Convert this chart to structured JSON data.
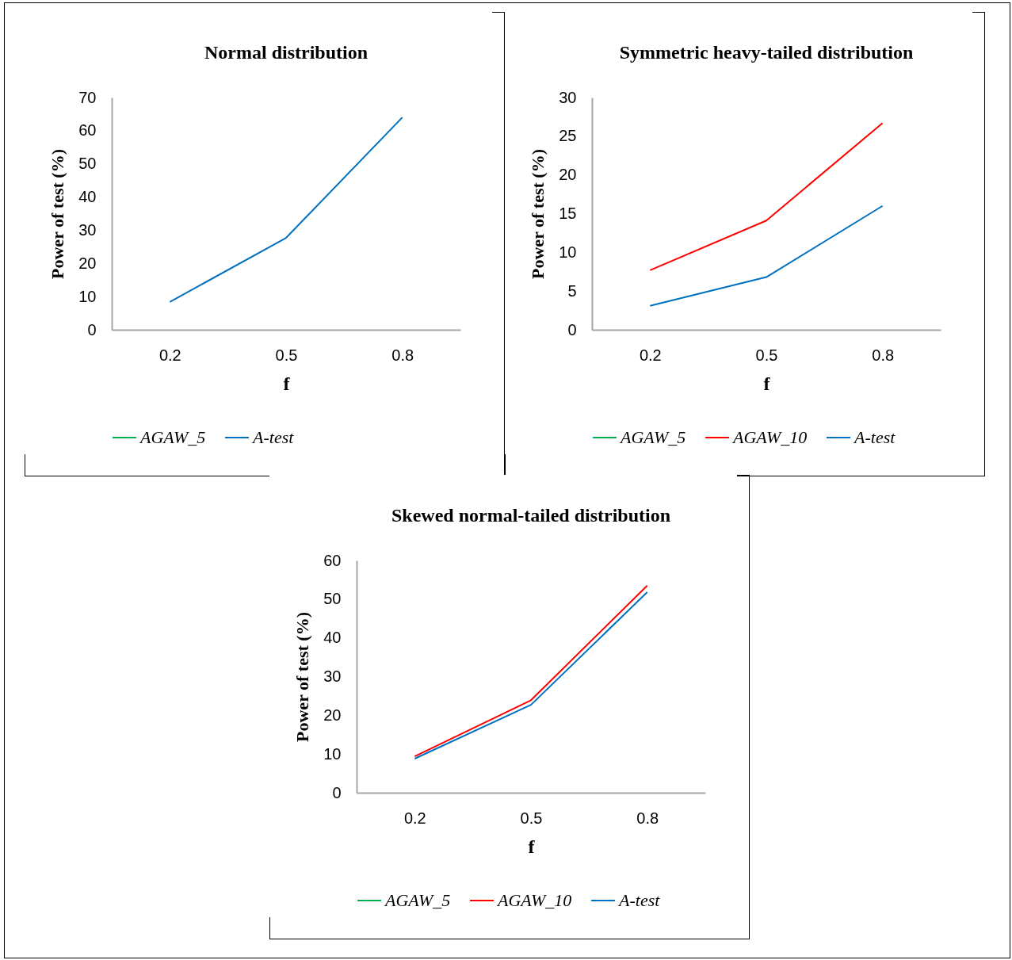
{
  "chart_data": [
    {
      "type": "line",
      "title": "Normal distribution",
      "xlabel": "f",
      "ylabel": "Power of test (%)",
      "categories": [
        "0.2",
        "0.5",
        "0.8"
      ],
      "ylim": [
        0,
        70
      ],
      "yticks": [
        0,
        10,
        20,
        30,
        40,
        50,
        60,
        70
      ],
      "grid": false,
      "legend": "bottom",
      "series": [
        {
          "name": "AGAW_5",
          "color": "#00b050",
          "values": [
            null,
            null,
            null
          ]
        },
        {
          "name": "A-test",
          "color": "#0070c0",
          "values": [
            8.4,
            27.7,
            64
          ]
        }
      ]
    },
    {
      "type": "line",
      "title": "Symmetric heavy-tailed distribution",
      "xlabel": "f",
      "ylabel": "Power of test (%)",
      "categories": [
        "0.2",
        "0.5",
        "0.8"
      ],
      "ylim": [
        0,
        30
      ],
      "yticks": [
        0,
        5,
        10,
        15,
        20,
        25,
        30
      ],
      "grid": false,
      "legend": "bottom",
      "series": [
        {
          "name": "AGAW_5",
          "color": "#00b050",
          "values": [
            null,
            null,
            null
          ]
        },
        {
          "name": "AGAW_10",
          "color": "#ff0000",
          "values": [
            7.7,
            14.1,
            26.7
          ]
        },
        {
          "name": "A-test",
          "color": "#0070c0",
          "values": [
            3.1,
            6.8,
            16.0
          ]
        }
      ]
    },
    {
      "type": "line",
      "title": "Skewed normal-tailed distribution",
      "xlabel": "f",
      "ylabel": "Power of test (%)",
      "categories": [
        "0.2",
        "0.5",
        "0.8"
      ],
      "ylim": [
        0,
        60
      ],
      "yticks": [
        0,
        10,
        20,
        30,
        40,
        50,
        60
      ],
      "grid": false,
      "legend": "bottom",
      "series": [
        {
          "name": "AGAW_5",
          "color": "#00b050",
          "values": [
            null,
            null,
            null
          ]
        },
        {
          "name": "AGAW_10",
          "color": "#ff0000",
          "values": [
            9.4,
            23.9,
            53.5
          ]
        },
        {
          "name": "A-test",
          "color": "#0070c0",
          "values": [
            8.8,
            22.7,
            51.8
          ]
        }
      ]
    }
  ]
}
